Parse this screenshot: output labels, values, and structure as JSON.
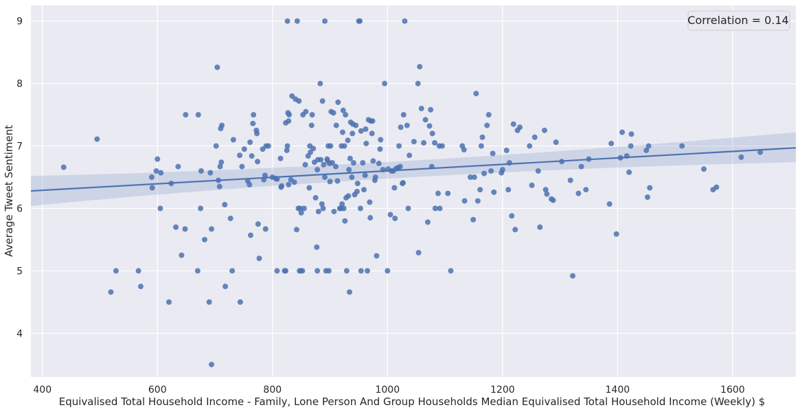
{
  "chart_data": {
    "type": "scatter",
    "xlabel": "Equivalised Total Household Income - Family, Lone Person And Group Households Median Equivalised Total Household Income (Weekly) $",
    "ylabel": "Average Tweet Sentiment",
    "xlim": [
      380,
      1710
    ],
    "ylim": [
      3.3,
      9.25
    ],
    "xticks": [
      400,
      600,
      800,
      1000,
      1200,
      1400,
      1600
    ],
    "yticks": [
      4,
      5,
      6,
      7,
      8,
      9
    ],
    "grid": true,
    "annotation": "Correlation = 0.14",
    "annotation_position": "top-right",
    "colors": {
      "background": "#eaeaf2",
      "grid": "#ffffff",
      "point": "#4c72b0",
      "line": "#4c72b0",
      "band": "#4c72b0"
    },
    "regression": {
      "x": [
        380,
        1710
      ],
      "y": [
        6.28,
        6.97
      ],
      "band_lower": [
        6.04,
        6.74
      ],
      "band_upper": [
        6.52,
        7.22
      ],
      "band_mid_lower": 6.57,
      "band_mid_upper": 6.66
    },
    "points": [
      [
        437,
        6.66
      ],
      [
        495,
        7.11
      ],
      [
        519,
        4.66
      ],
      [
        528,
        5.0
      ],
      [
        567,
        5.0
      ],
      [
        571,
        4.75
      ],
      [
        590,
        6.5
      ],
      [
        591,
        6.33
      ],
      [
        598,
        6.6
      ],
      [
        600,
        6.79
      ],
      [
        605,
        6.0
      ],
      [
        606,
        6.57
      ],
      [
        620,
        4.5
      ],
      [
        624,
        6.4
      ],
      [
        632,
        5.7
      ],
      [
        636,
        6.67
      ],
      [
        642,
        5.25
      ],
      [
        648,
        5.67
      ],
      [
        649,
        7.5
      ],
      [
        670,
        5.0
      ],
      [
        671,
        7.5
      ],
      [
        675,
        6.0
      ],
      [
        676,
        6.6
      ],
      [
        682,
        5.5
      ],
      [
        690,
        4.5
      ],
      [
        692,
        6.57
      ],
      [
        694,
        5.67
      ],
      [
        694,
        3.5
      ],
      [
        702,
        7.0
      ],
      [
        704,
        8.26
      ],
      [
        706,
        6.45
      ],
      [
        708,
        6.35
      ],
      [
        709,
        6.67
      ],
      [
        710,
        7.28
      ],
      [
        711,
        6.74
      ],
      [
        712,
        7.33
      ],
      [
        717,
        6.06
      ],
      [
        718,
        4.75
      ],
      [
        727,
        5.84
      ],
      [
        730,
        5.0
      ],
      [
        732,
        7.1
      ],
      [
        743,
        6.85
      ],
      [
        744,
        4.5
      ],
      [
        747,
        6.67
      ],
      [
        751,
        6.95
      ],
      [
        757,
        6.44
      ],
      [
        760,
        6.38
      ],
      [
        761,
        7.06
      ],
      [
        762,
        5.57
      ],
      [
        764,
        6.84
      ],
      [
        766,
        7.36
      ],
      [
        767,
        7.5
      ],
      [
        772,
        7.25
      ],
      [
        773,
        7.2
      ],
      [
        774,
        6.75
      ],
      [
        777,
        5.2
      ],
      [
        775,
        5.75
      ],
      [
        783,
        6.95
      ],
      [
        785,
        6.46
      ],
      [
        787,
        6.53
      ],
      [
        788,
        5.67
      ],
      [
        789,
        7.0
      ],
      [
        793,
        7.0
      ],
      [
        800,
        6.5
      ],
      [
        806,
        6.48
      ],
      [
        808,
        6.47
      ],
      [
        808,
        5.0
      ],
      [
        814,
        6.8
      ],
      [
        815,
        6.34
      ],
      [
        816,
        6.36
      ],
      [
        821,
        5.0
      ],
      [
        823,
        5.0
      ],
      [
        823,
        7.37
      ],
      [
        825,
        6.93
      ],
      [
        826,
        9.0
      ],
      [
        826,
        7.0
      ],
      [
        827,
        7.53
      ],
      [
        828,
        7.4
      ],
      [
        828,
        6.38
      ],
      [
        829,
        7.5
      ],
      [
        832,
        6.46
      ],
      [
        834,
        7.8
      ],
      [
        838,
        6.42
      ],
      [
        840,
        7.75
      ],
      [
        842,
        5.66
      ],
      [
        843,
        9.0
      ],
      [
        845,
        6.0
      ],
      [
        846,
        7.72
      ],
      [
        847,
        5.0
      ],
      [
        848,
        6.0
      ],
      [
        849,
        5.0
      ],
      [
        850,
        5.93
      ],
      [
        852,
        5.0
      ],
      [
        853,
        7.5
      ],
      [
        855,
        6.0
      ],
      [
        857,
        6.7
      ],
      [
        858,
        7.55
      ],
      [
        862,
        6.84
      ],
      [
        864,
        6.33
      ],
      [
        865,
        7.0
      ],
      [
        866,
        6.9
      ],
      [
        868,
        7.33
      ],
      [
        869,
        7.5
      ],
      [
        871,
        6.96
      ],
      [
        873,
        6.74
      ],
      [
        875,
        6.17
      ],
      [
        877,
        5.38
      ],
      [
        878,
        6.62
      ],
      [
        878,
        5.0
      ],
      [
        879,
        6.78
      ],
      [
        880,
        5.95
      ],
      [
        883,
        8.0
      ],
      [
        884,
        6.78
      ],
      [
        886,
        6.07
      ],
      [
        887,
        7.72
      ],
      [
        888,
        6.0
      ],
      [
        889,
        6.7
      ],
      [
        891,
        9.0
      ],
      [
        891,
        6.5
      ],
      [
        893,
        5.0
      ],
      [
        895,
        6.79
      ],
      [
        896,
        6.76
      ],
      [
        897,
        7.0
      ],
      [
        898,
        5.0
      ],
      [
        899,
        6.72
      ],
      [
        900,
        6.43
      ],
      [
        901,
        7.0
      ],
      [
        902,
        7.55
      ],
      [
        904,
        6.73
      ],
      [
        906,
        7.53
      ],
      [
        907,
        5.95
      ],
      [
        910,
        6.67
      ],
      [
        911,
        7.33
      ],
      [
        913,
        6.44
      ],
      [
        914,
        7.7
      ],
      [
        917,
        6.0
      ],
      [
        919,
        6.0
      ],
      [
        920,
        7.0
      ],
      [
        921,
        6.07
      ],
      [
        922,
        7.22
      ],
      [
        923,
        7.57
      ],
      [
        924,
        6.0
      ],
      [
        925,
        7.0
      ],
      [
        926,
        5.8
      ],
      [
        927,
        7.5
      ],
      [
        928,
        6.17
      ],
      [
        929,
        5.0
      ],
      [
        931,
        7.09
      ],
      [
        932,
        6.2
      ],
      [
        933,
        6.62
      ],
      [
        934,
        4.66
      ],
      [
        935,
        6.8
      ],
      [
        936,
        7.38
      ],
      [
        938,
        6.5
      ],
      [
        939,
        7.2
      ],
      [
        940,
        7.35
      ],
      [
        941,
        6.73
      ],
      [
        943,
        6.22
      ],
      [
        945,
        7.33
      ],
      [
        947,
        6.27
      ],
      [
        948,
        6.4
      ],
      [
        950,
        9.0
      ],
      [
        952,
        9.0
      ],
      [
        953,
        6.0
      ],
      [
        954,
        5.0
      ],
      [
        954,
        7.24
      ],
      [
        957,
        6.73
      ],
      [
        959,
        6.3
      ],
      [
        961,
        6.53
      ],
      [
        962,
        7.27
      ],
      [
        963,
        7.04
      ],
      [
        965,
        5.0
      ],
      [
        967,
        7.42
      ],
      [
        969,
        6.1
      ],
      [
        970,
        5.85
      ],
      [
        971,
        7.4
      ],
      [
        973,
        7.2
      ],
      [
        974,
        7.4
      ],
      [
        975,
        6.76
      ],
      [
        978,
        6.45
      ],
      [
        979,
        6.5
      ],
      [
        981,
        5.24
      ],
      [
        985,
        6.72
      ],
      [
        987,
        6.95
      ],
      [
        988,
        7.1
      ],
      [
        992,
        6.62
      ],
      [
        995,
        8.0
      ],
      [
        1000,
        5.0
      ],
      [
        1001,
        6.63
      ],
      [
        1005,
        5.9
      ],
      [
        1007,
        6.6
      ],
      [
        1010,
        6.6
      ],
      [
        1012,
        6.33
      ],
      [
        1013,
        5.84
      ],
      [
        1015,
        6.64
      ],
      [
        1018,
        6.65
      ],
      [
        1020,
        7.0
      ],
      [
        1022,
        6.67
      ],
      [
        1023,
        7.3
      ],
      [
        1026,
        6.4
      ],
      [
        1027,
        6.41
      ],
      [
        1028,
        7.5
      ],
      [
        1030,
        9.0
      ],
      [
        1034,
        7.33
      ],
      [
        1036,
        6.0
      ],
      [
        1038,
        6.85
      ],
      [
        1046,
        7.07
      ],
      [
        1053,
        8.0
      ],
      [
        1054,
        5.29
      ],
      [
        1056,
        8.27
      ],
      [
        1059,
        7.6
      ],
      [
        1063,
        7.05
      ],
      [
        1066,
        7.42
      ],
      [
        1070,
        5.78
      ],
      [
        1073,
        7.32
      ],
      [
        1075,
        7.58
      ],
      [
        1077,
        6.67
      ],
      [
        1078,
        7.2
      ],
      [
        1082,
        7.05
      ],
      [
        1083,
        6.0
      ],
      [
        1088,
        6.24
      ],
      [
        1090,
        7.0
      ],
      [
        1091,
        6.0
      ],
      [
        1095,
        7.0
      ],
      [
        1105,
        6.24
      ],
      [
        1110,
        5.0
      ],
      [
        1130,
        7.0
      ],
      [
        1133,
        6.94
      ],
      [
        1134,
        6.12
      ],
      [
        1144,
        6.5
      ],
      [
        1149,
        5.82
      ],
      [
        1151,
        6.5
      ],
      [
        1154,
        7.84
      ],
      [
        1157,
        6.12
      ],
      [
        1161,
        6.3
      ],
      [
        1163,
        7.0
      ],
      [
        1165,
        7.14
      ],
      [
        1168,
        6.56
      ],
      [
        1173,
        7.33
      ],
      [
        1176,
        7.5
      ],
      [
        1180,
        6.6
      ],
      [
        1183,
        6.88
      ],
      [
        1185,
        6.26
      ],
      [
        1198,
        6.57
      ],
      [
        1200,
        6.62
      ],
      [
        1207,
        6.93
      ],
      [
        1210,
        6.3
      ],
      [
        1212,
        6.73
      ],
      [
        1216,
        5.88
      ],
      [
        1219,
        7.35
      ],
      [
        1222,
        5.66
      ],
      [
        1226,
        7.25
      ],
      [
        1230,
        7.3
      ],
      [
        1247,
        7.0
      ],
      [
        1251,
        6.37
      ],
      [
        1256,
        7.14
      ],
      [
        1262,
        6.6
      ],
      [
        1265,
        5.7
      ],
      [
        1273,
        7.25
      ],
      [
        1275,
        6.3
      ],
      [
        1277,
        6.23
      ],
      [
        1285,
        6.15
      ],
      [
        1288,
        6.13
      ],
      [
        1293,
        7.06
      ],
      [
        1303,
        6.75
      ],
      [
        1318,
        6.45
      ],
      [
        1322,
        4.92
      ],
      [
        1332,
        6.24
      ],
      [
        1337,
        6.67
      ],
      [
        1345,
        6.3
      ],
      [
        1350,
        6.79
      ],
      [
        1386,
        6.07
      ],
      [
        1389,
        7.04
      ],
      [
        1398,
        5.59
      ],
      [
        1405,
        6.81
      ],
      [
        1408,
        7.22
      ],
      [
        1416,
        6.84
      ],
      [
        1420,
        6.58
      ],
      [
        1423,
        7.0
      ],
      [
        1424,
        7.19
      ],
      [
        1450,
        6.93
      ],
      [
        1452,
        6.18
      ],
      [
        1454,
        7.0
      ],
      [
        1456,
        6.33
      ],
      [
        1512,
        7.0
      ],
      [
        1550,
        6.63
      ],
      [
        1566,
        6.3
      ],
      [
        1572,
        6.34
      ],
      [
        1615,
        6.82
      ],
      [
        1648,
        6.9
      ]
    ]
  }
}
